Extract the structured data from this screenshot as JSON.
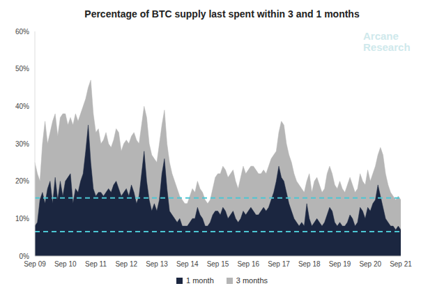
{
  "chart_data": {
    "type": "area",
    "title": "Percentage of BTC supply last spent within 3 and 1 months",
    "annotation": "Arcane Research",
    "categories": [
      "Sep 09",
      null,
      null,
      null,
      null,
      null,
      null,
      null,
      null,
      null,
      null,
      null,
      "Sep 10",
      null,
      null,
      null,
      null,
      null,
      null,
      null,
      null,
      null,
      null,
      null,
      "Sep 11",
      null,
      null,
      null,
      null,
      null,
      null,
      null,
      null,
      null,
      null,
      null,
      "Sep 12",
      null,
      null,
      null,
      null,
      null,
      null,
      null,
      null,
      null,
      null,
      null,
      "Sep 13",
      null,
      null,
      null,
      null,
      null,
      null,
      null,
      null,
      null,
      null,
      null,
      "Sep 14",
      null,
      null,
      null,
      null,
      null,
      null,
      null,
      null,
      null,
      null,
      null,
      "Sep 15",
      null,
      null,
      null,
      null,
      null,
      null,
      null,
      null,
      null,
      null,
      null,
      "Sep 16",
      null,
      null,
      null,
      null,
      null,
      null,
      null,
      null,
      null,
      null,
      null,
      "Sep 17",
      null,
      null,
      null,
      null,
      null,
      null,
      null,
      null,
      null,
      null,
      null,
      "Sep 18",
      null,
      null,
      null,
      null,
      null,
      null,
      null,
      null,
      null,
      null,
      null,
      "Sep 19",
      null,
      null,
      null,
      null,
      null,
      null,
      null,
      null,
      null,
      null,
      null,
      "Sep 20",
      null,
      null,
      null,
      null,
      null,
      null,
      null,
      null,
      null,
      null,
      null,
      "Sep 21"
    ],
    "series": [
      {
        "name": "1 month",
        "color": "#1b2640",
        "values": [
          8,
          9,
          15,
          17,
          14,
          18,
          20,
          14,
          21,
          15,
          20,
          16,
          20,
          21,
          22,
          14,
          18,
          17,
          20,
          22,
          28,
          35,
          25,
          18,
          16,
          17,
          17,
          16,
          17,
          18,
          17,
          19,
          20,
          18,
          16,
          17,
          18,
          16,
          19,
          17,
          14,
          16,
          22,
          28,
          20,
          15,
          12,
          14,
          12,
          15,
          22,
          26,
          18,
          12,
          11,
          10,
          9,
          10,
          8,
          8,
          8,
          9,
          10,
          10,
          13,
          11,
          10,
          8,
          8,
          9,
          11,
          12,
          12,
          11,
          13,
          12,
          10,
          11,
          12,
          10,
          9,
          10,
          12,
          11,
          12,
          13,
          12,
          11,
          11,
          12,
          13,
          12,
          13,
          15,
          17,
          20,
          24,
          21,
          20,
          17,
          14,
          12,
          10,
          9,
          8,
          9,
          8,
          14,
          10,
          8,
          9,
          10,
          9,
          8,
          9,
          11,
          13,
          12,
          9,
          8,
          9,
          8,
          8,
          9,
          11,
          10,
          8,
          9,
          13,
          12,
          10,
          13,
          12,
          14,
          15,
          19,
          16,
          13,
          10,
          9,
          8,
          8,
          7,
          8,
          7
        ]
      },
      {
        "name": "3 months",
        "color": "#b5b5b5",
        "values": [
          25,
          22,
          20,
          30,
          36,
          30,
          33,
          36,
          38,
          32,
          37,
          38,
          38,
          35,
          37,
          35,
          38,
          36,
          38,
          40,
          42,
          45,
          47,
          38,
          33,
          34,
          30,
          31,
          33,
          30,
          29,
          31,
          34,
          33,
          28,
          30,
          31,
          30,
          32,
          33,
          31,
          30,
          35,
          40,
          37,
          30,
          27,
          26,
          25,
          30,
          35,
          39,
          30,
          25,
          22,
          20,
          18,
          16,
          15,
          14,
          14,
          16,
          18,
          17,
          20,
          18,
          17,
          15,
          14,
          15,
          18,
          21,
          22,
          22,
          24,
          23,
          21,
          22,
          23,
          20,
          18,
          21,
          24,
          22,
          23,
          24,
          24,
          23,
          22,
          22,
          23,
          22,
          24,
          26,
          27,
          28,
          33,
          36,
          35,
          30,
          27,
          25,
          22,
          20,
          19,
          18,
          17,
          20,
          22,
          17,
          20,
          21,
          19,
          17,
          18,
          22,
          24,
          22,
          19,
          18,
          20,
          18,
          17,
          19,
          21,
          19,
          17,
          18,
          22,
          20,
          19,
          23,
          20,
          22,
          24,
          27,
          29,
          27,
          22,
          19,
          17,
          16,
          15,
          16,
          15
        ]
      }
    ],
    "reference_lines": [
      15.5,
      6.5
    ],
    "ylim": [
      0,
      60
    ],
    "yticks": [
      {
        "value": 0,
        "label": "0%"
      },
      {
        "value": 10,
        "label": "10%"
      },
      {
        "value": 20,
        "label": "20%"
      },
      {
        "value": 30,
        "label": "30%"
      },
      {
        "value": 40,
        "label": "40%"
      },
      {
        "value": 50,
        "label": "50%"
      },
      {
        "value": 60,
        "label": "60%"
      }
    ],
    "grid": false
  }
}
